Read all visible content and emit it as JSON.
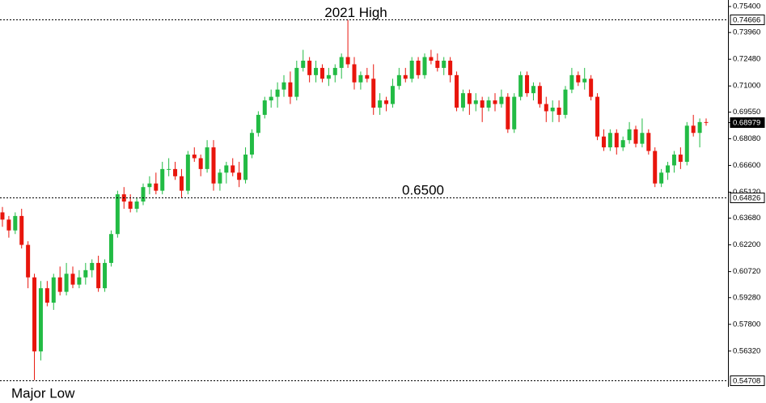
{
  "chart_data": {
    "type": "candlestick",
    "up_color": "#22bb44",
    "down_color": "#e8150c",
    "ylim": [
      0.5434,
      0.7576
    ],
    "yticks": [
      {
        "value": 0.754,
        "label": "0.75400"
      },
      {
        "value": 0.7396,
        "label": "0.73960"
      },
      {
        "value": 0.7248,
        "label": "0.72480"
      },
      {
        "value": 0.71,
        "label": "0.71000"
      },
      {
        "value": 0.6955,
        "label": "0.69550"
      },
      {
        "value": 0.6808,
        "label": "0.68080"
      },
      {
        "value": 0.666,
        "label": "0.66600"
      },
      {
        "value": 0.6512,
        "label": "0.65120"
      },
      {
        "value": 0.6368,
        "label": "0.63680"
      },
      {
        "value": 0.622,
        "label": "0.62200"
      },
      {
        "value": 0.6072,
        "label": "0.60720"
      },
      {
        "value": 0.5928,
        "label": "0.59280"
      },
      {
        "value": 0.578,
        "label": "0.57800"
      },
      {
        "value": 0.5632,
        "label": "0.56320"
      }
    ],
    "levels": [
      {
        "value": 0.74666,
        "label": "0.74666",
        "dashed": true
      },
      {
        "value": 0.64826,
        "label": "0.64826",
        "dashed": true
      },
      {
        "value": 0.54708,
        "label": "0.54708",
        "dashed": true
      },
      {
        "value": 0.68979,
        "label": "0.68979",
        "dashed": false
      }
    ],
    "annotations": [
      "2021 High",
      "0.6500",
      "Major Low"
    ],
    "open": [
      0.64,
      0.636,
      0.63,
      0.638,
      0.622,
      0.604,
      0.563,
      0.598,
      0.59,
      0.604,
      0.596,
      0.606,
      0.6,
      0.604,
      0.608,
      0.612,
      0.598,
      0.612,
      0.628,
      0.65,
      0.646,
      0.642,
      0.646,
      0.654,
      0.656,
      0.652,
      0.664,
      0.664,
      0.66,
      0.652,
      0.672,
      0.67,
      0.664,
      0.676,
      0.656,
      0.662,
      0.666,
      0.662,
      0.658,
      0.672,
      0.684,
      0.694,
      0.702,
      0.704,
      0.708,
      0.712,
      0.704,
      0.72,
      0.724,
      0.716,
      0.72,
      0.714,
      0.716,
      0.72,
      0.726,
      0.722,
      0.712,
      0.716,
      0.714,
      0.698,
      0.702,
      0.7,
      0.71,
      0.716,
      0.714,
      0.724,
      0.716,
      0.726,
      0.724,
      0.72,
      0.724,
      0.716,
      0.698,
      0.706,
      0.7,
      0.702,
      0.698,
      0.702,
      0.7,
      0.704,
      0.686,
      0.704,
      0.716,
      0.706,
      0.71,
      0.7,
      0.696,
      0.698,
      0.694,
      0.708,
      0.716,
      0.712,
      0.714,
      0.704,
      0.682,
      0.676,
      0.684,
      0.676,
      0.68,
      0.686,
      0.678,
      0.684,
      0.674,
      0.656,
      0.662,
      0.666,
      0.672,
      0.668,
      0.688,
      0.684,
      0.69
    ],
    "high": [
      0.643,
      0.638,
      0.64,
      0.642,
      0.624,
      0.606,
      0.602,
      0.602,
      0.606,
      0.61,
      0.612,
      0.61,
      0.608,
      0.612,
      0.614,
      0.616,
      0.614,
      0.63,
      0.652,
      0.654,
      0.65,
      0.648,
      0.656,
      0.66,
      0.662,
      0.668,
      0.67,
      0.668,
      0.664,
      0.674,
      0.676,
      0.672,
      0.68,
      0.68,
      0.664,
      0.668,
      0.67,
      0.668,
      0.676,
      0.686,
      0.696,
      0.704,
      0.708,
      0.712,
      0.716,
      0.718,
      0.724,
      0.73,
      0.726,
      0.724,
      0.722,
      0.72,
      0.722,
      0.728,
      0.74666,
      0.726,
      0.718,
      0.72,
      0.722,
      0.706,
      0.704,
      0.714,
      0.72,
      0.72,
      0.726,
      0.726,
      0.728,
      0.73,
      0.728,
      0.726,
      0.726,
      0.718,
      0.708,
      0.708,
      0.706,
      0.704,
      0.704,
      0.706,
      0.708,
      0.706,
      0.706,
      0.718,
      0.718,
      0.712,
      0.712,
      0.704,
      0.702,
      0.702,
      0.71,
      0.72,
      0.718,
      0.72,
      0.716,
      0.706,
      0.686,
      0.686,
      0.686,
      0.682,
      0.69,
      0.688,
      0.692,
      0.686,
      0.676,
      0.664,
      0.668,
      0.674,
      0.676,
      0.69,
      0.694,
      0.692,
      0.692
    ],
    "low": [
      0.632,
      0.626,
      0.628,
      0.62,
      0.598,
      0.54708,
      0.558,
      0.588,
      0.586,
      0.594,
      0.594,
      0.598,
      0.598,
      0.6,
      0.604,
      0.596,
      0.596,
      0.61,
      0.626,
      0.642,
      0.64,
      0.64,
      0.644,
      0.65,
      0.65,
      0.65,
      0.66,
      0.658,
      0.648,
      0.65,
      0.668,
      0.66,
      0.662,
      0.652,
      0.652,
      0.656,
      0.66,
      0.654,
      0.656,
      0.67,
      0.682,
      0.692,
      0.698,
      0.698,
      0.704,
      0.7,
      0.702,
      0.718,
      0.712,
      0.712,
      0.712,
      0.71,
      0.712,
      0.714,
      0.72,
      0.708,
      0.708,
      0.712,
      0.694,
      0.694,
      0.696,
      0.698,
      0.708,
      0.712,
      0.712,
      0.714,
      0.714,
      0.722,
      0.718,
      0.716,
      0.712,
      0.696,
      0.696,
      0.694,
      0.696,
      0.69,
      0.696,
      0.696,
      0.698,
      0.684,
      0.684,
      0.702,
      0.704,
      0.702,
      0.698,
      0.69,
      0.69,
      0.69,
      0.692,
      0.706,
      0.71,
      0.708,
      0.702,
      0.68,
      0.674,
      0.674,
      0.672,
      0.674,
      0.678,
      0.676,
      0.676,
      0.672,
      0.654,
      0.654,
      0.658,
      0.662,
      0.664,
      0.666,
      0.682,
      0.676,
      0.688
    ],
    "close": [
      0.636,
      0.63,
      0.638,
      0.622,
      0.604,
      0.563,
      0.598,
      0.59,
      0.604,
      0.596,
      0.606,
      0.6,
      0.604,
      0.608,
      0.612,
      0.598,
      0.612,
      0.628,
      0.65,
      0.646,
      0.642,
      0.646,
      0.654,
      0.656,
      0.652,
      0.664,
      0.664,
      0.66,
      0.652,
      0.672,
      0.67,
      0.664,
      0.676,
      0.656,
      0.662,
      0.666,
      0.662,
      0.658,
      0.672,
      0.684,
      0.694,
      0.702,
      0.704,
      0.708,
      0.712,
      0.704,
      0.72,
      0.724,
      0.716,
      0.72,
      0.714,
      0.716,
      0.72,
      0.726,
      0.722,
      0.712,
      0.716,
      0.714,
      0.698,
      0.702,
      0.7,
      0.71,
      0.716,
      0.714,
      0.724,
      0.716,
      0.726,
      0.724,
      0.72,
      0.724,
      0.716,
      0.698,
      0.706,
      0.7,
      0.702,
      0.698,
      0.702,
      0.7,
      0.704,
      0.686,
      0.704,
      0.716,
      0.706,
      0.71,
      0.7,
      0.696,
      0.698,
      0.694,
      0.708,
      0.716,
      0.712,
      0.714,
      0.704,
      0.682,
      0.676,
      0.684,
      0.676,
      0.68,
      0.686,
      0.678,
      0.684,
      0.674,
      0.656,
      0.662,
      0.666,
      0.672,
      0.668,
      0.688,
      0.684,
      0.69,
      0.68979
    ]
  }
}
